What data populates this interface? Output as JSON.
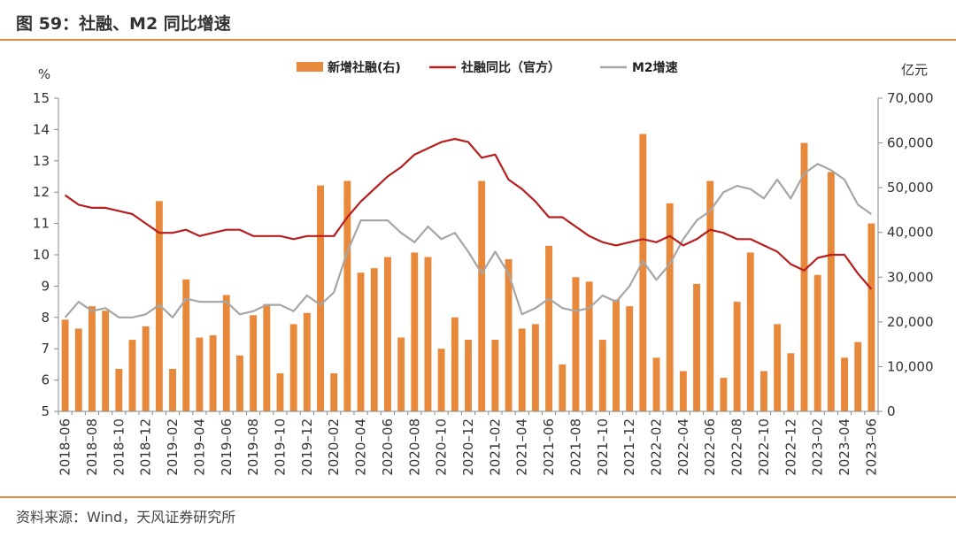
{
  "title": "图 59：社融、M2 同比增速",
  "source": "资料来源：Wind，天风证券研究所",
  "colors": {
    "bar": "#e8883a",
    "line_official": "#b81e1e",
    "line_m2": "#a6a6a6",
    "axis": "#888888",
    "rule": "#e38a3c"
  },
  "chart_data": {
    "type": "bar+line",
    "left_axis": {
      "unit": "%",
      "ticks": [
        "15",
        "14",
        "13",
        "12",
        "11",
        "10",
        "9",
        "8",
        "7",
        "6",
        "5"
      ],
      "ylim": [
        5,
        15
      ]
    },
    "right_axis": {
      "unit": "亿元",
      "ticks": [
        "70,000",
        "60,000",
        "50,000",
        "40,000",
        "30,000",
        "20,000",
        "10,000",
        "0"
      ],
      "ylim": [
        0,
        70000
      ]
    },
    "x_tick_labels": [
      "2018–06",
      "2018–08",
      "2018–10",
      "2018–12",
      "2019–02",
      "2019–04",
      "2019–06",
      "2019–08",
      "2019–10",
      "2019–12",
      "2020–02",
      "2020–04",
      "2020–06",
      "2020–08",
      "2020–10",
      "2020–12",
      "2021–02",
      "2021–04",
      "2021–06",
      "2021–08",
      "2021–10",
      "2021–12",
      "2022–02",
      "2022–04",
      "2022–06",
      "2022–08",
      "2022–10",
      "2022–12",
      "2023–02",
      "2023–04",
      "2023–06"
    ],
    "months": [
      "2018-06",
      "2018-07",
      "2018-08",
      "2018-09",
      "2018-10",
      "2018-11",
      "2018-12",
      "2019-01",
      "2019-02",
      "2019-03",
      "2019-04",
      "2019-05",
      "2019-06",
      "2019-07",
      "2019-08",
      "2019-09",
      "2019-10",
      "2019-11",
      "2019-12",
      "2020-01",
      "2020-02",
      "2020-03",
      "2020-04",
      "2020-05",
      "2020-06",
      "2020-07",
      "2020-08",
      "2020-09",
      "2020-10",
      "2020-11",
      "2020-12",
      "2021-01",
      "2021-02",
      "2021-03",
      "2021-04",
      "2021-05",
      "2021-06",
      "2021-07",
      "2021-08",
      "2021-09",
      "2021-10",
      "2021-11",
      "2021-12",
      "2022-01",
      "2022-02",
      "2022-03",
      "2022-04",
      "2022-05",
      "2022-06",
      "2022-07",
      "2022-08",
      "2022-09",
      "2022-10",
      "2022-11",
      "2022-12",
      "2023-01",
      "2023-02",
      "2023-03",
      "2023-04",
      "2023-05",
      "2023-06"
    ],
    "legend": [
      {
        "key": "bar",
        "label": "新增社融(右)"
      },
      {
        "key": "line_official",
        "label": "社融同比（官方）"
      },
      {
        "key": "line_m2",
        "label": "M2增速"
      }
    ],
    "series": [
      {
        "name": "新增社融(右)",
        "axis": "right",
        "kind": "bar",
        "values": [
          20500,
          18500,
          23500,
          22500,
          9500,
          16000,
          19000,
          47000,
          9500,
          29500,
          16500,
          17000,
          26000,
          12500,
          21500,
          24000,
          8500,
          19500,
          22000,
          50500,
          8500,
          51500,
          31000,
          32000,
          34500,
          16500,
          35500,
          34500,
          14000,
          21000,
          16000,
          51500,
          16000,
          34000,
          18500,
          19500,
          37000,
          10500,
          30000,
          29000,
          16000,
          25000,
          23500,
          62000,
          12000,
          46500,
          9000,
          28500,
          51500,
          7500,
          24500,
          35500,
          9000,
          19500,
          13000,
          60000,
          30500,
          53500,
          12000,
          15500,
          42000
        ]
      },
      {
        "name": "社融同比（官方）",
        "axis": "left",
        "kind": "line",
        "values": [
          11.9,
          11.6,
          11.5,
          11.5,
          11.4,
          11.3,
          11.0,
          10.7,
          10.7,
          10.8,
          10.6,
          10.7,
          10.8,
          10.8,
          10.6,
          10.6,
          10.6,
          10.5,
          10.6,
          10.6,
          10.6,
          11.2,
          11.7,
          12.1,
          12.5,
          12.8,
          13.2,
          13.4,
          13.6,
          13.7,
          13.6,
          13.1,
          13.2,
          12.4,
          12.1,
          11.7,
          11.2,
          11.2,
          10.9,
          10.6,
          10.4,
          10.3,
          10.4,
          10.5,
          10.4,
          10.6,
          10.3,
          10.5,
          10.8,
          10.7,
          10.5,
          10.5,
          10.3,
          10.1,
          9.7,
          9.5,
          9.9,
          10.0,
          10.0,
          9.4,
          8.9
        ]
      },
      {
        "name": "M2增速",
        "axis": "left",
        "kind": "line",
        "values": [
          8.0,
          8.5,
          8.2,
          8.3,
          8.0,
          8.0,
          8.1,
          8.4,
          8.0,
          8.6,
          8.5,
          8.5,
          8.5,
          8.1,
          8.2,
          8.4,
          8.4,
          8.2,
          8.7,
          8.4,
          8.8,
          10.1,
          11.1,
          11.1,
          11.1,
          10.7,
          10.4,
          10.9,
          10.5,
          10.7,
          10.1,
          9.4,
          10.1,
          9.4,
          8.1,
          8.3,
          8.6,
          8.3,
          8.2,
          8.3,
          8.7,
          8.5,
          9.0,
          9.8,
          9.2,
          9.7,
          10.5,
          11.1,
          11.4,
          12.0,
          12.2,
          12.1,
          11.8,
          12.4,
          11.8,
          12.6,
          12.9,
          12.7,
          12.4,
          11.6,
          11.3
        ]
      }
    ]
  }
}
